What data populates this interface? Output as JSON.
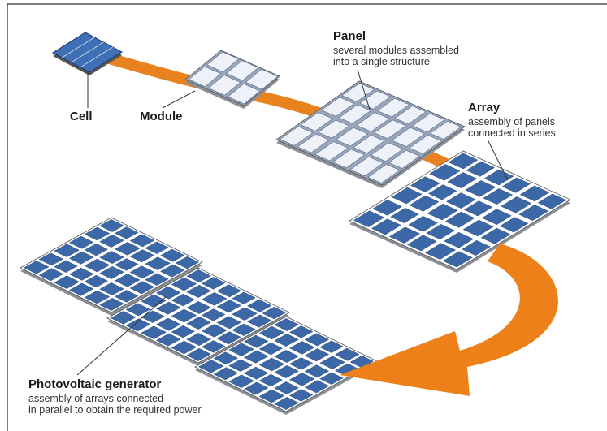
{
  "nodes": [
    {
      "label": "Cell"
    },
    {
      "label": "Module"
    },
    {
      "label": "Panel",
      "description": [
        "several modules assembled",
        "into a single structure"
      ]
    },
    {
      "label": "Array",
      "description": [
        "assembly of panels",
        "connected in series"
      ]
    },
    {
      "label": "Photovoltaic generator",
      "description": [
        "assembly of arrays connected",
        "in parallel to obtain the required power"
      ]
    }
  ]
}
